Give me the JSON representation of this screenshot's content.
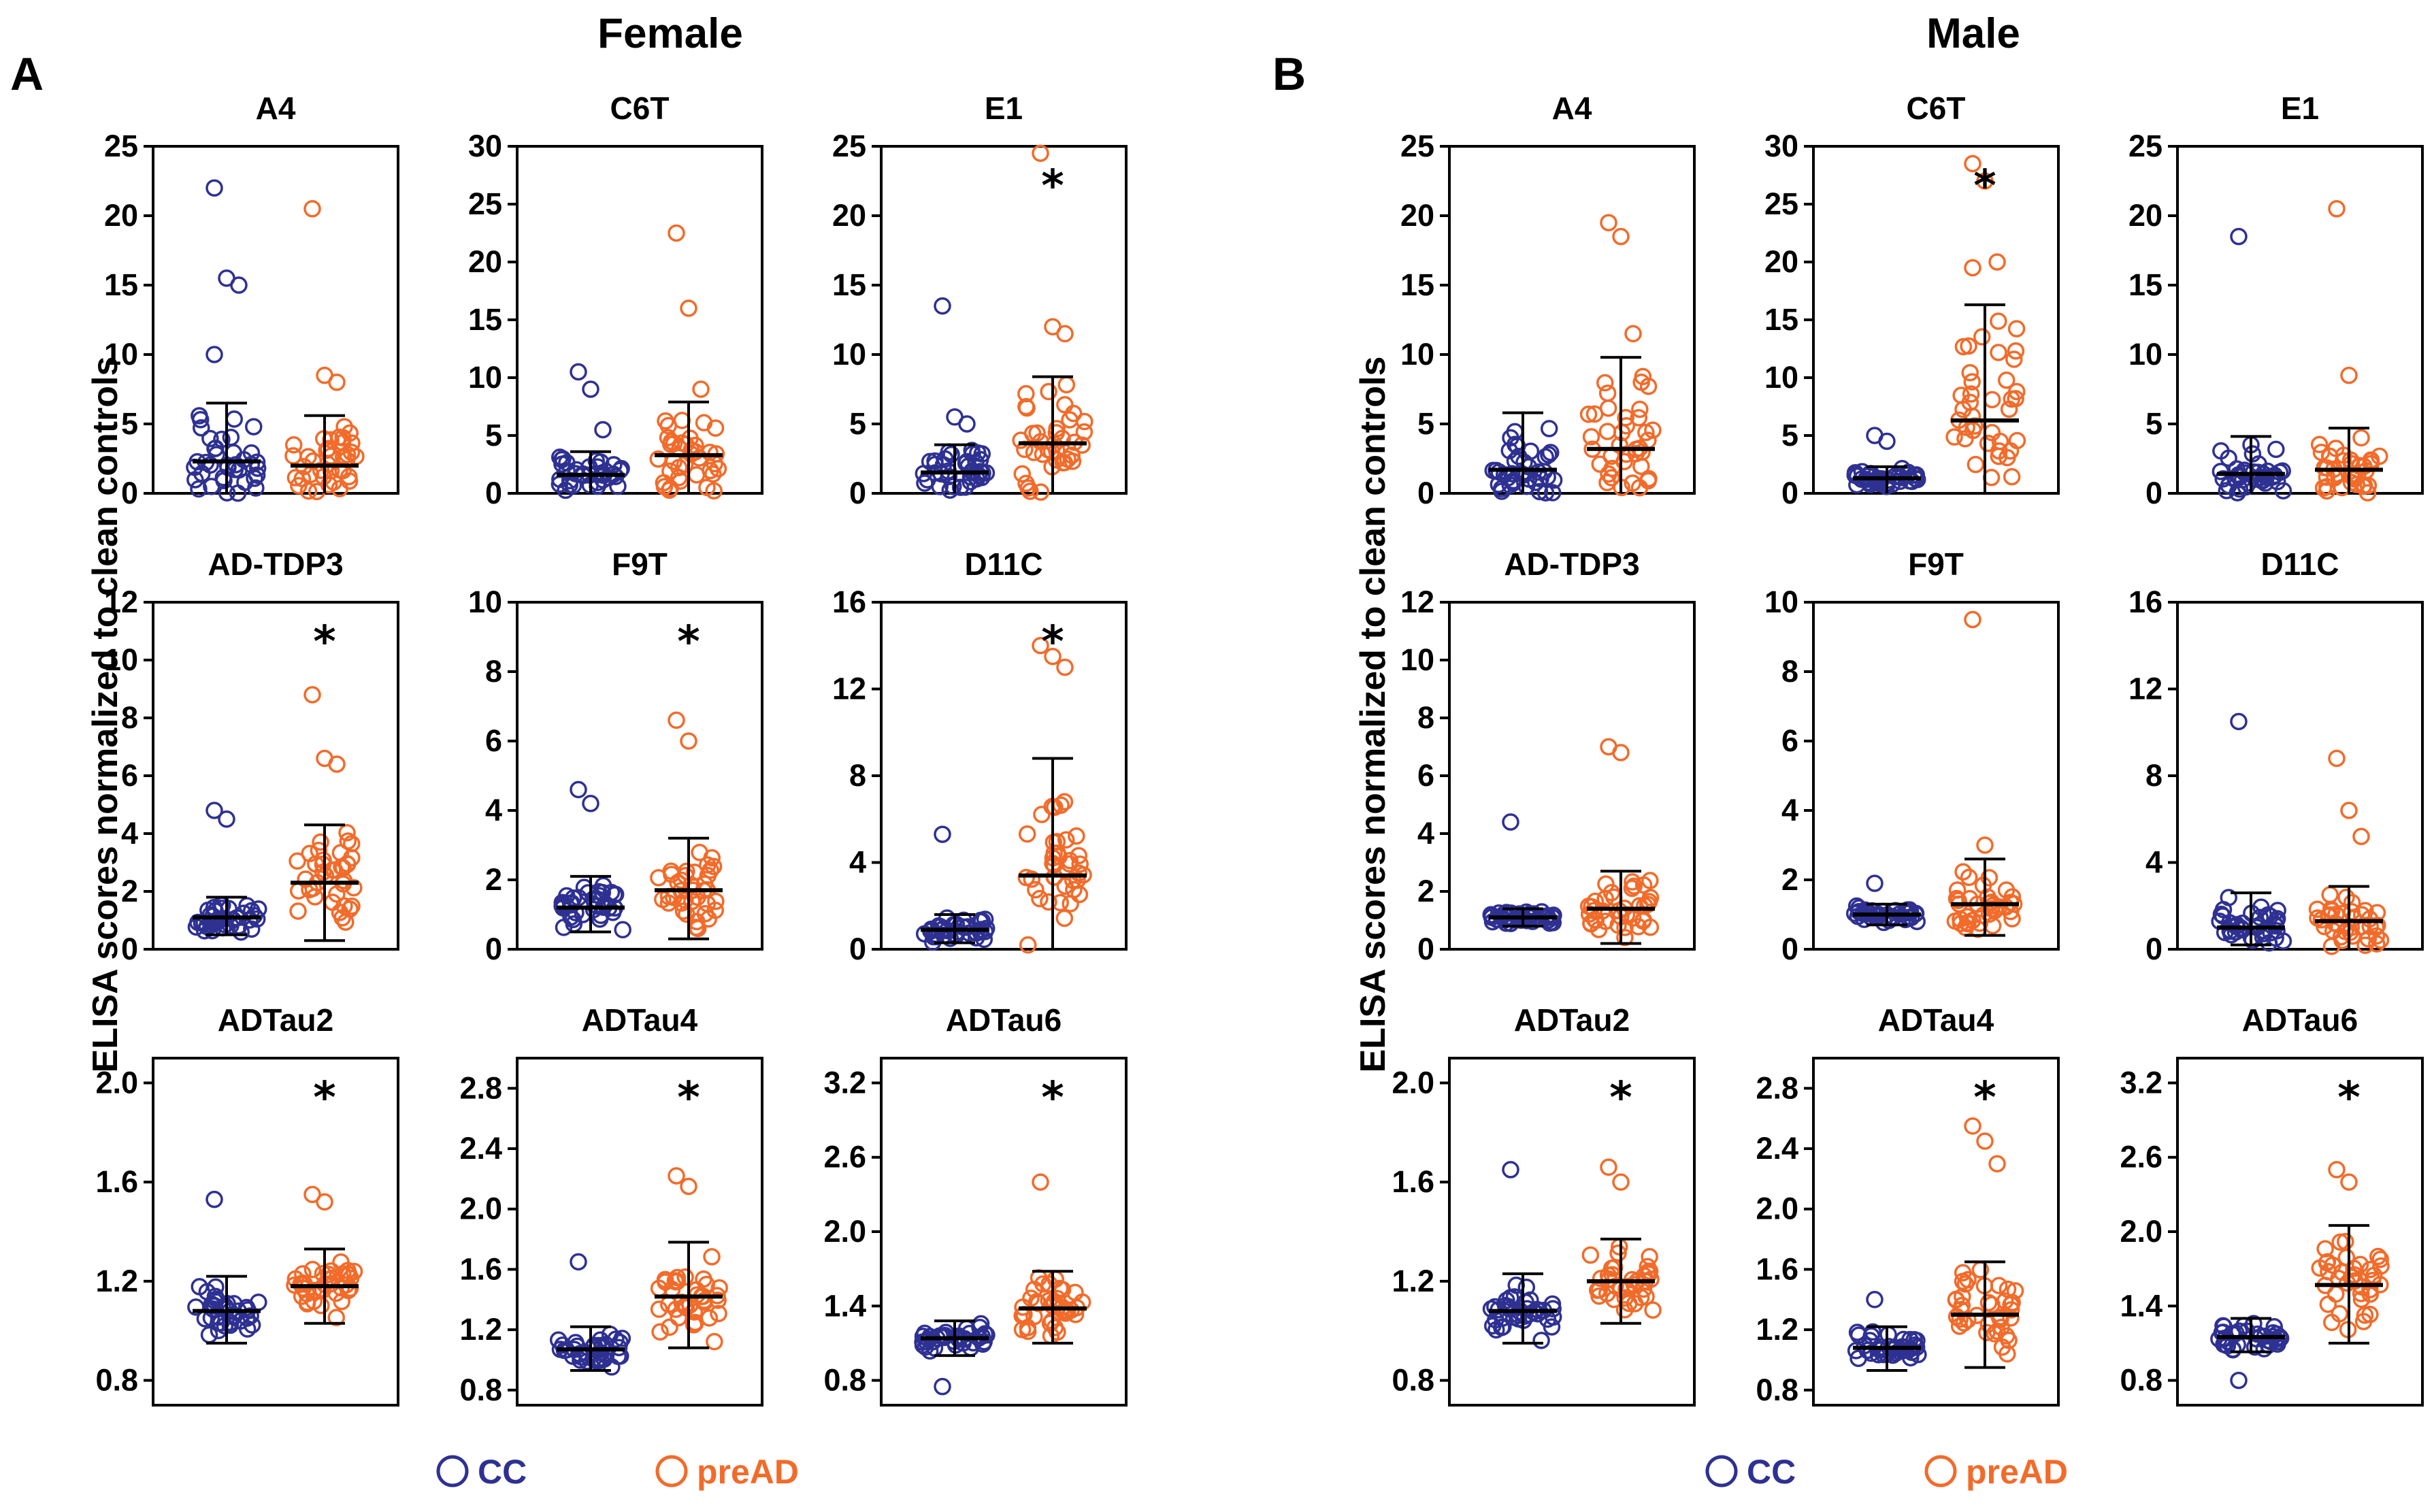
{
  "chart_data": [
    {
      "panel": "A",
      "title": "Female",
      "ylabel": "ELISA scores normalized to  clean controls",
      "type": "scatter",
      "groups": [
        "CC",
        "preAD"
      ],
      "subplots": [
        {
          "title": "A4",
          "ylim": [
            0,
            25
          ],
          "yticks": [
            "0",
            "5",
            "10",
            "15",
            "20",
            "25"
          ],
          "cc": {
            "mean": 2.3,
            "sd_hi": 6.5,
            "outliers": [
              22.0,
              15.5,
              15.0,
              10.0
            ]
          },
          "pread": {
            "mean": 2.0,
            "sd_hi": 5.6,
            "outliers": [
              20.5,
              8.5,
              8.0
            ]
          },
          "significant": false
        },
        {
          "title": "C6T",
          "ylim": [
            0,
            30
          ],
          "yticks": [
            "0",
            "5",
            "10",
            "15",
            "20",
            "25",
            "30"
          ],
          "cc": {
            "mean": 1.6,
            "sd_hi": 3.6,
            "outliers": [
              10.5,
              9.0,
              5.5
            ]
          },
          "pread": {
            "mean": 3.3,
            "sd_hi": 7.9,
            "outliers": [
              22.5,
              16.0,
              9.0
            ]
          },
          "significant": false
        },
        {
          "title": "E1",
          "ylim": [
            0,
            25
          ],
          "yticks": [
            "0",
            "5",
            "10",
            "15",
            "20",
            "25"
          ],
          "cc": {
            "mean": 1.5,
            "sd_hi": 3.5,
            "outliers": [
              13.5,
              5.5,
              5.0
            ]
          },
          "pread": {
            "mean": 3.6,
            "sd_hi": 8.4,
            "outliers": [
              24.5,
              12.0,
              11.5
            ]
          },
          "significant": true
        },
        {
          "title": "AD-TDP3",
          "ylim": [
            0,
            12
          ],
          "yticks": [
            "0",
            "2",
            "4",
            "6",
            "8",
            "10",
            "12"
          ],
          "cc": {
            "mean": 1.1,
            "sd_lo": 0.5,
            "sd_hi": 1.8,
            "outliers": [
              4.8,
              4.5
            ]
          },
          "pread": {
            "mean": 2.3,
            "sd_lo": 0.3,
            "sd_hi": 4.3,
            "outliers": [
              8.8,
              6.6,
              6.4
            ]
          },
          "significant": true
        },
        {
          "title": "F9T",
          "ylim": [
            0,
            10
          ],
          "yticks": [
            "0",
            "2",
            "4",
            "6",
            "8",
            "10"
          ],
          "cc": {
            "mean": 1.2,
            "sd_lo": 0.5,
            "sd_hi": 2.1,
            "outliers": [
              4.6,
              4.2
            ]
          },
          "pread": {
            "mean": 1.7,
            "sd_lo": 0.3,
            "sd_hi": 3.2,
            "outliers": [
              6.6,
              6.0
            ]
          },
          "significant": true
        },
        {
          "title": "D11C",
          "ylim": [
            0,
            16
          ],
          "yticks": [
            "0",
            "4",
            "8",
            "12",
            "16"
          ],
          "cc": {
            "mean": 0.9,
            "sd_lo": 0.3,
            "sd_hi": 1.6,
            "outliers": [
              5.3
            ]
          },
          "pread": {
            "mean": 3.4,
            "sd_hi": 8.8,
            "outliers": [
              14.0,
              13.5,
              13.0
            ]
          },
          "significant": true
        },
        {
          "title": "ADTau2",
          "ylim": [
            0.7,
            2.1
          ],
          "yticks": [
            "0.8",
            "1.2",
            "1.6",
            "2.0"
          ],
          "cc": {
            "mean": 1.08,
            "sd_lo": 0.95,
            "sd_hi": 1.22,
            "outliers": [
              1.53
            ]
          },
          "pread": {
            "mean": 1.18,
            "sd_lo": 1.03,
            "sd_hi": 1.33,
            "outliers": [
              1.55,
              1.52
            ]
          },
          "significant": true
        },
        {
          "title": "ADTau4",
          "ylim": [
            0.7,
            3.0
          ],
          "yticks": [
            "0.8",
            "1.2",
            "1.6",
            "2.0",
            "2.4",
            "2.8"
          ],
          "cc": {
            "mean": 1.07,
            "sd_lo": 0.93,
            "sd_hi": 1.22,
            "outliers": [
              1.65
            ]
          },
          "pread": {
            "mean": 1.42,
            "sd_lo": 1.08,
            "sd_hi": 1.78,
            "outliers": [
              2.22,
              2.15
            ]
          },
          "significant": true
        },
        {
          "title": "ADTau6",
          "ylim": [
            0.6,
            3.4
          ],
          "yticks": [
            "0.8",
            "1.4",
            "2.0",
            "2.6",
            "3.2"
          ],
          "cc": {
            "mean": 1.14,
            "sd_lo": 1.0,
            "sd_hi": 1.28,
            "outliers": [
              0.75
            ]
          },
          "pread": {
            "mean": 1.38,
            "sd_lo": 1.1,
            "sd_hi": 1.68,
            "outliers": [
              2.4
            ]
          },
          "significant": true
        }
      ]
    },
    {
      "panel": "B",
      "title": "Male",
      "ylabel": "ELISA scores normalized to  clean controls",
      "type": "scatter",
      "groups": [
        "CC",
        "preAD"
      ],
      "subplots": [
        {
          "title": "A4",
          "ylim": [
            0,
            25
          ],
          "yticks": [
            "0",
            "5",
            "10",
            "15",
            "20",
            "25"
          ],
          "cc": {
            "mean": 1.7,
            "sd_hi": 5.8,
            "outliers": [
              4.0
            ]
          },
          "pread": {
            "mean": 3.2,
            "sd_hi": 9.8,
            "outliers": [
              19.5,
              18.5,
              11.5
            ]
          },
          "significant": false
        },
        {
          "title": "C6T",
          "ylim": [
            0,
            30
          ],
          "yticks": [
            "0",
            "5",
            "10",
            "15",
            "20",
            "25",
            "30"
          ],
          "cc": {
            "mean": 1.3,
            "sd_hi": 2.3,
            "outliers": [
              5.0,
              4.5
            ]
          },
          "pread": {
            "mean": 6.3,
            "sd_hi": 16.3,
            "outliers": [
              28.5,
              27.0,
              20.0,
              19.5
            ]
          },
          "significant": true
        },
        {
          "title": "E1",
          "ylim": [
            0,
            25
          ],
          "yticks": [
            "0",
            "5",
            "10",
            "15",
            "20",
            "25"
          ],
          "cc": {
            "mean": 1.4,
            "sd_hi": 4.1,
            "outliers": [
              18.5,
              3.5
            ]
          },
          "pread": {
            "mean": 1.7,
            "sd_hi": 4.7,
            "outliers": [
              20.5,
              8.5,
              4.0
            ]
          },
          "significant": false
        },
        {
          "title": "AD-TDP3",
          "ylim": [
            0,
            12
          ],
          "yticks": [
            "0",
            "2",
            "4",
            "6",
            "8",
            "10",
            "12"
          ],
          "cc": {
            "mean": 1.1,
            "sd_lo": 0.8,
            "sd_hi": 1.4,
            "outliers": [
              4.4
            ]
          },
          "pread": {
            "mean": 1.4,
            "sd_lo": 0.2,
            "sd_hi": 2.7,
            "outliers": [
              7.0,
              6.8
            ]
          },
          "significant": false
        },
        {
          "title": "F9T",
          "ylim": [
            0,
            10
          ],
          "yticks": [
            "0",
            "2",
            "4",
            "6",
            "8",
            "10"
          ],
          "cc": {
            "mean": 1.0,
            "sd_lo": 0.7,
            "sd_hi": 1.3,
            "outliers": [
              1.9
            ]
          },
          "pread": {
            "mean": 1.3,
            "sd_lo": 0.4,
            "sd_hi": 2.6,
            "outliers": [
              9.5,
              3.0
            ]
          },
          "significant": false
        },
        {
          "title": "D11C",
          "ylim": [
            0,
            16
          ],
          "yticks": [
            "0",
            "4",
            "8",
            "12",
            "16"
          ],
          "cc": {
            "mean": 1.0,
            "sd_lo": 0.2,
            "sd_hi": 2.6,
            "outliers": [
              10.5
            ]
          },
          "pread": {
            "mean": 1.3,
            "sd_hi": 2.9,
            "outliers": [
              8.8,
              6.4,
              5.2
            ]
          },
          "significant": false
        },
        {
          "title": "ADTau2",
          "ylim": [
            0.7,
            2.1
          ],
          "yticks": [
            "0.8",
            "1.2",
            "1.6",
            "2.0"
          ],
          "cc": {
            "mean": 1.08,
            "sd_lo": 0.95,
            "sd_hi": 1.23,
            "outliers": [
              1.65
            ]
          },
          "pread": {
            "mean": 1.2,
            "sd_lo": 1.03,
            "sd_hi": 1.37,
            "outliers": [
              1.66,
              1.6
            ]
          },
          "significant": true
        },
        {
          "title": "ADTau4",
          "ylim": [
            0.7,
            3.0
          ],
          "yticks": [
            "0.8",
            "1.2",
            "1.6",
            "2.0",
            "2.4",
            "2.8"
          ],
          "cc": {
            "mean": 1.08,
            "sd_lo": 0.93,
            "sd_hi": 1.22,
            "outliers": [
              1.4
            ]
          },
          "pread": {
            "mean": 1.3,
            "sd_lo": 0.95,
            "sd_hi": 1.65,
            "outliers": [
              2.55,
              2.45,
              2.3
            ]
          },
          "significant": true
        },
        {
          "title": "ADTau6",
          "ylim": [
            0.6,
            3.4
          ],
          "yticks": [
            "0.8",
            "1.4",
            "2.0",
            "2.6",
            "3.2"
          ],
          "cc": {
            "mean": 1.15,
            "sd_lo": 1.03,
            "sd_hi": 1.3,
            "outliers": [
              0.8
            ]
          },
          "pread": {
            "mean": 1.57,
            "sd_lo": 1.1,
            "sd_hi": 2.05,
            "outliers": [
              2.5,
              2.4
            ]
          },
          "significant": true
        }
      ]
    }
  ],
  "significance_marker": "*",
  "legend": [
    {
      "label": "CC",
      "color": "#2e3192"
    },
    {
      "label": "preAD",
      "color": "#f26b2a"
    }
  ]
}
